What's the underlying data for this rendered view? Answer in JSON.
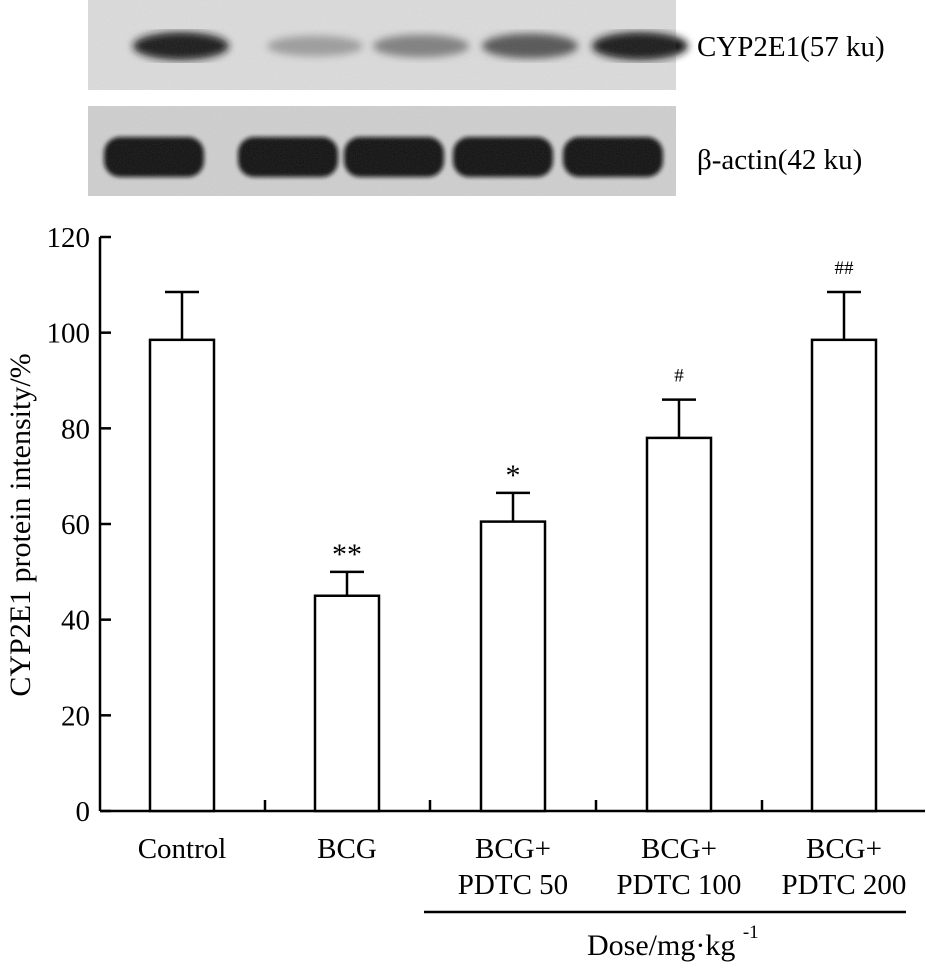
{
  "blot": {
    "rows": [
      {
        "label": "CYP2E1(57 ku)"
      },
      {
        "label": "β-actin(42 ku)"
      }
    ],
    "lanes": 5
  },
  "chart_data": {
    "type": "bar",
    "categories": [
      [
        "Control"
      ],
      [
        "BCG"
      ],
      [
        "BCG+",
        "PDTC 50"
      ],
      [
        "BCG+",
        "PDTC 100"
      ],
      [
        "BCG+",
        "PDTC 200"
      ]
    ],
    "values": [
      98.5,
      45,
      60.5,
      78,
      98.5
    ],
    "errors": [
      10,
      5,
      6,
      8,
      10
    ],
    "annotations": [
      "",
      "**",
      "*",
      "#",
      "##"
    ],
    "ylabel": "CYP2E1 protein intensity/%",
    "xlabel": "Dose/mg·kg",
    "xlabel_superscript": "-1",
    "ylim": [
      0,
      120
    ],
    "yticks": [
      0,
      20,
      40,
      60,
      80,
      100,
      120
    ],
    "bar_fill": "#ffffff",
    "bar_stroke": "#000000"
  }
}
